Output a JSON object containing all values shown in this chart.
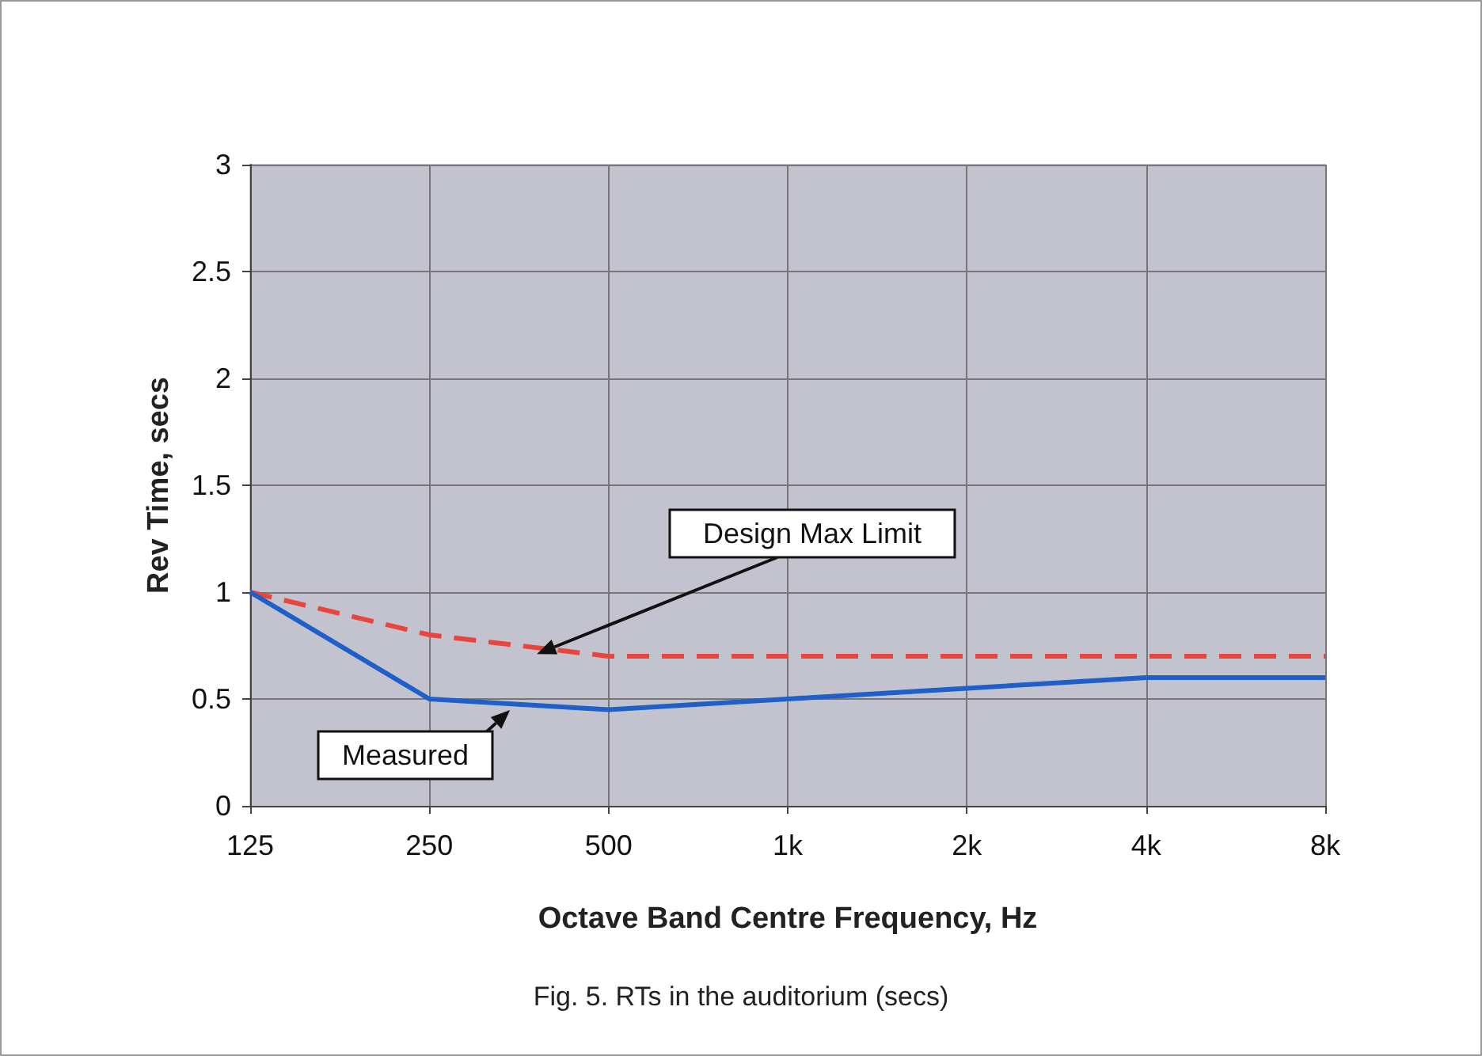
{
  "chart_data": {
    "type": "line",
    "xlabel": "Octave Band Centre Frequency, Hz",
    "ylabel": "Rev Time, secs",
    "categories": [
      "125",
      "250",
      "500",
      "1k",
      "2k",
      "4k",
      "8k"
    ],
    "series": [
      {
        "name": "Design Max Limit",
        "color": "#e8453c",
        "line_style": "dashed",
        "values": [
          1,
          0.8,
          0.7,
          0.7,
          0.7,
          0.7,
          0.7
        ]
      },
      {
        "name": "Measured",
        "color": "#1f5fc8",
        "line_style": "solid",
        "values": [
          1,
          0.5,
          0.45,
          0.5,
          0.55,
          0.6,
          0.6
        ]
      }
    ],
    "ylim": [
      0,
      3
    ],
    "yticks": [
      0,
      0.5,
      1,
      1.5,
      2,
      2.5,
      3
    ],
    "grid": true,
    "legend": false,
    "marker": "none",
    "annotations": [
      "Fig. 5. RTs in the auditorium (secs)"
    ]
  }
}
